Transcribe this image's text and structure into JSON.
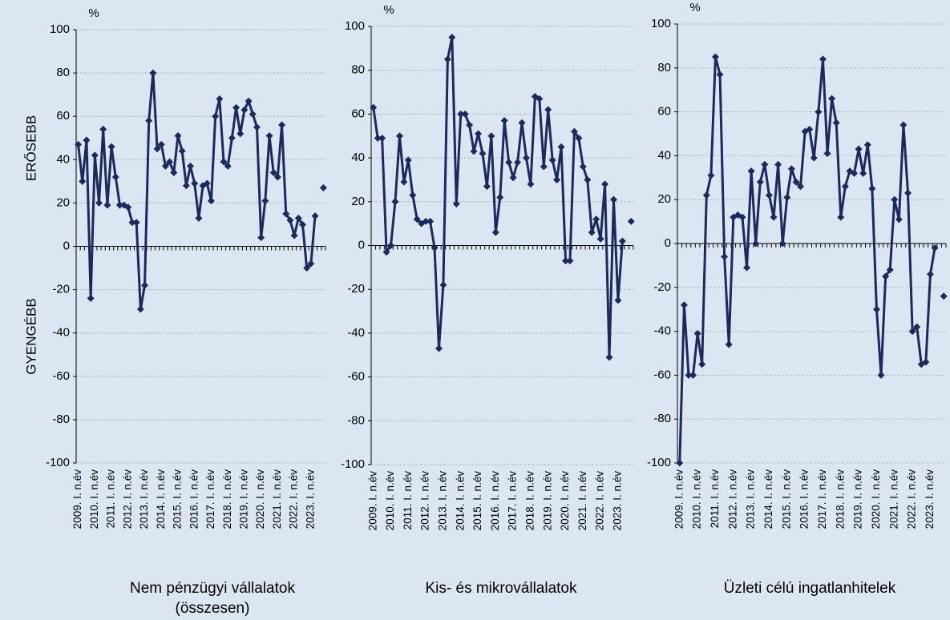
{
  "labels": {
    "stronger": "ERŐSEBB",
    "weaker": "GYENGÉBB"
  },
  "chart_data": [
    {
      "type": "line",
      "title": [
        "Nem pénzügyi vállalatok",
        "(összesen)"
      ],
      "unit": "%",
      "categories": [
        "2009. I. n.év",
        null,
        null,
        null,
        "2010. I. n.év",
        null,
        null,
        null,
        "2011. I. n.év",
        null,
        null,
        null,
        "2012. I. n.év",
        null,
        null,
        null,
        "2013. I. n.év",
        null,
        null,
        null,
        "2014. I. n.év",
        null,
        null,
        null,
        "2015. I. n.év",
        null,
        null,
        null,
        "2016. I. n.év",
        null,
        null,
        null,
        "2017. I. n.év",
        null,
        null,
        null,
        "2018. I. n.év",
        null,
        null,
        null,
        "2019. I. n.év",
        null,
        null,
        null,
        "2020. I. n.év",
        null,
        null,
        null,
        "2021. I. n.év",
        null,
        null,
        null,
        "2022. I. n.év",
        null,
        null,
        null,
        "2023. I. n.év",
        null,
        null,
        null
      ],
      "values": [
        47,
        30,
        49,
        -24,
        42,
        20,
        54,
        19,
        46,
        32,
        19,
        19,
        18,
        11,
        11,
        -29,
        -18,
        58,
        80,
        45,
        47,
        37,
        39,
        34,
        51,
        44,
        28,
        37,
        29,
        13,
        28,
        29,
        21,
        60,
        68,
        39,
        37,
        50,
        64,
        52,
        63,
        67,
        61,
        55,
        4,
        21,
        51,
        34,
        32,
        56,
        15,
        12,
        5,
        13,
        10,
        -10,
        -8,
        14,
        null,
        27
      ],
      "color": "#1b2a5c",
      "ylim": [
        -100,
        100
      ],
      "yticks": [
        -100,
        -80,
        -60,
        -40,
        -20,
        0,
        20,
        40,
        60,
        80,
        100
      ],
      "grid": true
    },
    {
      "type": "line",
      "title": [
        "Kis- és mikrovállalatok"
      ],
      "unit": "%",
      "categories": [
        "2009. I. n.év",
        null,
        null,
        null,
        "2010. I. n.év",
        null,
        null,
        null,
        "2011. I. n.év",
        null,
        null,
        null,
        "2012. I. n.év",
        null,
        null,
        null,
        "2013. I. n.év",
        null,
        null,
        null,
        "2014. I. n.év",
        null,
        null,
        null,
        "2015. I. n.év",
        null,
        null,
        null,
        "2016. I. n.év",
        null,
        null,
        null,
        "2017. I. n.év",
        null,
        null,
        null,
        "2018. I. n.év",
        null,
        null,
        null,
        "2019. I. n.év",
        null,
        null,
        null,
        "2020. I. n.év",
        null,
        null,
        null,
        "2021. I. n.év",
        null,
        null,
        null,
        "2022. I. n.év",
        null,
        null,
        null,
        "2023. I. n.év",
        null,
        null,
        null
      ],
      "values": [
        63,
        49,
        49,
        -3,
        0,
        20,
        50,
        29,
        39,
        23,
        12,
        10,
        11,
        11,
        -1,
        -47,
        -18,
        85,
        95,
        19,
        60,
        60,
        55,
        43,
        51,
        42,
        27,
        50,
        6,
        22,
        57,
        38,
        31,
        38,
        56,
        40,
        28,
        68,
        67,
        36,
        62,
        39,
        30,
        45,
        -7,
        -7,
        52,
        49,
        36,
        30,
        6,
        12,
        3,
        28,
        -51,
        21,
        -25,
        2,
        null,
        11
      ],
      "color": "#1b2a5c",
      "ylim": [
        -100,
        100
      ],
      "yticks": [
        -100,
        -80,
        -60,
        -40,
        -20,
        0,
        20,
        40,
        60,
        80,
        100
      ],
      "grid": true
    },
    {
      "type": "line",
      "title": [
        "Üzleti célú ingatlanhitelek"
      ],
      "unit": "%",
      "categories": [
        "2009. I. n.év",
        null,
        null,
        null,
        "2010. I. n.év",
        null,
        null,
        null,
        "2011. I. n.év",
        null,
        null,
        null,
        "2012. I. n.év",
        null,
        null,
        null,
        "2013. I. n.év",
        null,
        null,
        null,
        "2014. I. n.év",
        null,
        null,
        null,
        "2015. I. n.év",
        null,
        null,
        null,
        "2016. I. n.év",
        null,
        null,
        null,
        "2017. I. n.év",
        null,
        null,
        null,
        "2018. I. n.év",
        null,
        null,
        null,
        "2019. I. n.év",
        null,
        null,
        null,
        "2020. I. n.év",
        null,
        null,
        null,
        "2021. I. n.év",
        null,
        null,
        null,
        "2022. I. n.év",
        null,
        null,
        null,
        "2023. I. n.év",
        null,
        null,
        null
      ],
      "values": [
        -100,
        -28,
        -60,
        -60,
        -41,
        -55,
        22,
        31,
        85,
        77,
        -6,
        -46,
        12,
        13,
        12,
        -11,
        33,
        0,
        28,
        36,
        22,
        12,
        36,
        0,
        21,
        34,
        28,
        26,
        51,
        52,
        39,
        60,
        84,
        41,
        66,
        55,
        12,
        26,
        33,
        32,
        43,
        32,
        45,
        25,
        -30,
        -60,
        -15,
        -12,
        20,
        11,
        54,
        23,
        -40,
        -38,
        -55,
        -54,
        -14,
        -2,
        null,
        -24
      ],
      "color": "#1b2a5c",
      "ylim": [
        -100,
        100
      ],
      "yticks": [
        -100,
        -80,
        -60,
        -40,
        -20,
        0,
        20,
        40,
        60,
        80,
        100
      ],
      "grid": true
    }
  ]
}
